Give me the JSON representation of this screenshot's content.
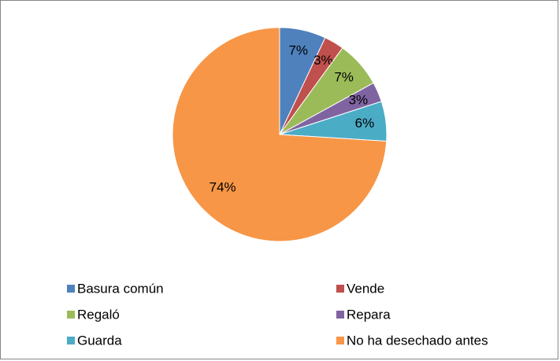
{
  "chart_data": {
    "type": "pie",
    "categories": [
      "Basura común",
      "Vende",
      "Regaló",
      "Repara",
      "Guarda",
      "No ha desechado antes"
    ],
    "values": [
      7,
      3,
      7,
      3,
      6,
      74
    ],
    "value_labels": [
      "7%",
      "3%",
      "7%",
      "3%",
      "6%",
      "74%"
    ],
    "colors": [
      "#4f81bd",
      "#c0504d",
      "#9bbb59",
      "#8064a2",
      "#4bacc6",
      "#f79646"
    ],
    "legend": "bottom"
  }
}
